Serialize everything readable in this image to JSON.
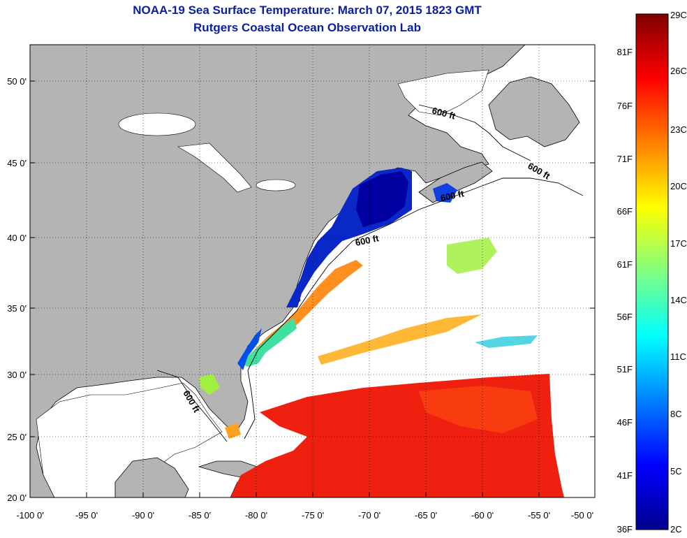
{
  "header": {
    "title": "NOAA-19 Sea Surface Temperature:  March 07, 2015 1823 GMT",
    "subtitle": "Rutgers Coastal Ocean Observation Lab"
  },
  "axes": {
    "lat_labels": [
      "50 0'",
      "45 0'",
      "40 0'",
      "35 0'",
      "30 0'",
      "25 0'",
      "20 0'"
    ],
    "lon_labels": [
      "-100 0'",
      "-95 0'",
      "-90 0'",
      "-85 0'",
      "-80 0'",
      "-75 0'",
      "-70 0'",
      "-65 0'",
      "-60 0'",
      "-55 0'",
      "-50 0'"
    ]
  },
  "map_labels": {
    "contour_labels": [
      "600 ft",
      "600 ft",
      "600 ft",
      "600 ft",
      "600 ft"
    ]
  },
  "colorbar": {
    "celsius_labels": [
      "29C",
      "26C",
      "23C",
      "20C",
      "17C",
      "14C",
      "11C",
      "8C",
      "5C",
      "2C"
    ],
    "fahrenheit_labels": [
      "81F",
      "76F",
      "71F",
      "66F",
      "61F",
      "56F",
      "51F",
      "46F",
      "41F",
      "36F"
    ],
    "colors": [
      "#7f0000",
      "#ff0000",
      "#ff8000",
      "#ffff00",
      "#80ff80",
      "#00ffff",
      "#0080ff",
      "#0000ff",
      "#00008f"
    ]
  },
  "colors": {
    "land": "#b4b4b4",
    "ocean": "#ffffff",
    "title": "#0a1fa0"
  }
}
